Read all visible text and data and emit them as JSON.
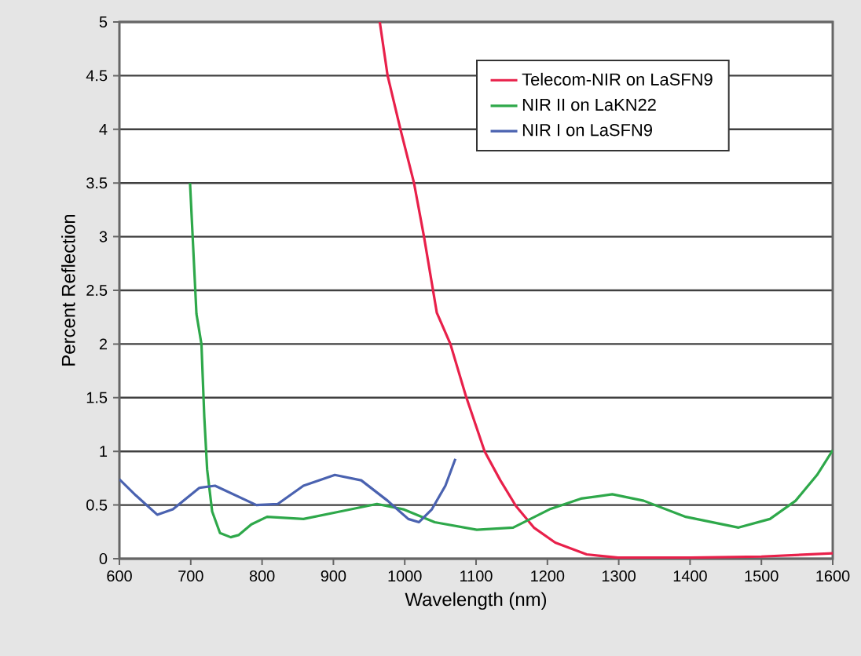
{
  "chart_data": {
    "type": "line",
    "xlabel": "Wavelength (nm)",
    "ylabel": "Percent Reflection",
    "xlim": [
      600,
      1600
    ],
    "ylim": [
      0,
      5
    ],
    "xticks": [
      600,
      700,
      800,
      900,
      1000,
      1100,
      1200,
      1300,
      1400,
      1500,
      1600
    ],
    "yticks": [
      0,
      0.5,
      1,
      1.5,
      2,
      2.5,
      3,
      3.5,
      4,
      4.5,
      5
    ],
    "grid": "y",
    "legend": "top right",
    "marker": "none",
    "line_style": "solid",
    "series": [
      {
        "name": "Telecom-NIR on LaSFN9",
        "color": "#e8204a",
        "x": [
          965,
          976,
          994,
          1013,
          1027,
          1045,
          1064,
          1086,
          1112,
          1134,
          1156,
          1181,
          1211,
          1255,
          1299,
          1400,
          1500,
          1600
        ],
        "values": [
          5,
          4.5,
          4,
          3.5,
          3,
          2.29,
          2.0,
          1.51,
          1.0,
          0.73,
          0.49,
          0.29,
          0.15,
          0.04,
          0.01,
          0.01,
          0.02,
          0.05
        ]
      },
      {
        "name": "NIR II on LaKN22",
        "color": "#2ea84a",
        "x": [
          699,
          708,
          715,
          719,
          723,
          730,
          741,
          756,
          767,
          785,
          807,
          858,
          910,
          961,
          998,
          1042,
          1101,
          1152,
          1203,
          1247,
          1291,
          1335,
          1394,
          1468,
          1512,
          1548,
          1578,
          1600
        ],
        "values": [
          3.5,
          2.28,
          2.0,
          1.32,
          0.83,
          0.44,
          0.24,
          0.2,
          0.22,
          0.32,
          0.39,
          0.37,
          0.44,
          0.51,
          0.46,
          0.34,
          0.27,
          0.29,
          0.46,
          0.56,
          0.6,
          0.54,
          0.39,
          0.29,
          0.37,
          0.54,
          0.78,
          1.01
        ]
      },
      {
        "name": "NIR I on LaSFN9",
        "color": "#4a62b0",
        "x": [
          600,
          623,
          653,
          675,
          712,
          734,
          763,
          792,
          822,
          858,
          902,
          939,
          976,
          1005,
          1020,
          1038,
          1057,
          1071
        ],
        "values": [
          0.74,
          0.59,
          0.41,
          0.46,
          0.66,
          0.68,
          0.59,
          0.5,
          0.51,
          0.68,
          0.78,
          0.73,
          0.54,
          0.37,
          0.34,
          0.46,
          0.68,
          0.93
        ]
      }
    ]
  }
}
